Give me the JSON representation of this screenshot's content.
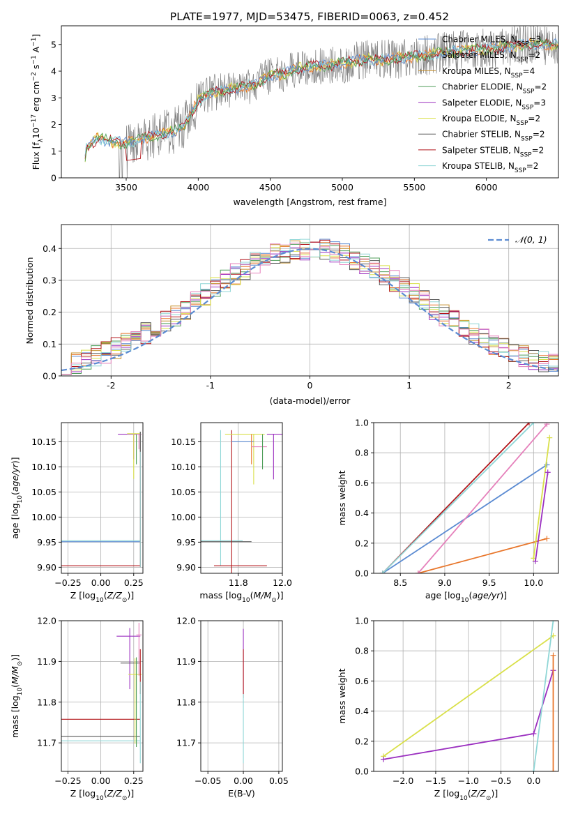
{
  "title": "PLATE=1977, MJD=53475, FIBERID=0063, z=0.452",
  "colors": {
    "chabrier_miles": "#5b8bd2",
    "salpeter_miles": "#e8762b",
    "kroupa_miles": "#c5902e",
    "chabrier_elodie": "#4f9e5a",
    "salpeter_elodie": "#9b30c0",
    "kroupa_elodie": "#d9e04a",
    "chabrier_stelib": "#595959",
    "salpeter_stelib": "#b2151a",
    "kroupa_stelib": "#8fd6d6",
    "pink": "#e580bb",
    "gray": "#808080",
    "grid": "#b0b0b0",
    "gaussian": "#5b8bd2"
  },
  "chart_data": [
    {
      "id": "spectrum",
      "type": "line",
      "title": "PLATE=1977, MJD=53475, FIBERID=0063, z=0.452",
      "xlabel": "wavelength [Angstrom, rest frame]",
      "ylabel": "Flux [fλ10⁻¹⁷ erg cm⁻² s⁻¹ A⁻¹]",
      "xlim": [
        3050,
        6500
      ],
      "ylim": [
        0,
        5.7
      ],
      "xticks": [
        3500,
        4000,
        4500,
        5000,
        5500,
        6000
      ],
      "yticks": [
        0,
        1,
        2,
        3,
        4,
        5
      ],
      "legend_position": "top-right",
      "data_anchor": {
        "x": [
          3200,
          3220,
          3300,
          3400,
          3500,
          3600,
          3700,
          3800,
          3900,
          4000,
          4100,
          4200,
          4300,
          4400,
          4500,
          4600,
          4700,
          4800,
          4900,
          5000,
          5100,
          5200,
          5300,
          5400,
          5500,
          5600,
          5700,
          5800,
          5900,
          6000,
          6100,
          6200,
          6300,
          6500
        ],
        "y": [
          0.0,
          1.1,
          1.5,
          1.35,
          1.3,
          1.45,
          1.6,
          1.7,
          1.9,
          2.9,
          3.2,
          3.3,
          3.4,
          3.5,
          3.85,
          3.9,
          4.1,
          4.2,
          4.2,
          4.3,
          4.4,
          4.45,
          4.4,
          4.5,
          4.55,
          4.6,
          4.7,
          4.75,
          4.8,
          4.85,
          4.9,
          4.95,
          5.0,
          5.0
        ]
      },
      "series": [
        {
          "name": "Chabrier MILES, N$_{SSP}$=3"
        },
        {
          "name": "Salpeter MILES, N$_{SSP}$=2"
        },
        {
          "name": "Kroupa MILES, N$_{SSP}$=4"
        },
        {
          "name": "Chabrier ELODIE, N$_{SSP}$=2"
        },
        {
          "name": "Salpeter ELODIE, N$_{SSP}$=3"
        },
        {
          "name": "Kroupa ELODIE, N$_{SSP}$=2"
        },
        {
          "name": "Chabrier STELIB, N$_{SSP}$=2"
        },
        {
          "name": "Salpeter STELIB, N$_{SSP}$=2"
        },
        {
          "name": "Kroupa STELIB, N$_{SSP}$=2"
        }
      ]
    },
    {
      "id": "residuals",
      "type": "line",
      "xlabel": "(data-model)/error",
      "ylabel": "Normed distribution",
      "xlim": [
        -2.5,
        2.5
      ],
      "ylim": [
        0,
        0.475
      ],
      "xticks": [
        -2,
        -1,
        0,
        1,
        2
      ],
      "yticks": [
        0.0,
        0.1,
        0.2,
        0.3,
        0.4
      ],
      "legend": "𝒩(0, 1)",
      "bin_width": 0.1,
      "bin_start": -2.5
    },
    {
      "id": "age_vs_Z",
      "xlabel": "Z [log10(Z/Z⊙)]",
      "ylabel": "age  [log10(age/yr)]",
      "xlim": [
        -0.3,
        0.32
      ],
      "ylim": [
        9.888,
        10.188
      ],
      "xticks": [
        -0.25,
        0.0,
        0.25
      ],
      "xticklabels": [
        "−0.25",
        "0.00",
        "0.25"
      ],
      "yticks": [
        9.9,
        9.95,
        10.0,
        10.05,
        10.1,
        10.15
      ],
      "yticklabels": [
        "9.90",
        "9.95",
        "10.00",
        "10.05",
        "10.10",
        "10.15"
      ]
    },
    {
      "id": "age_vs_mass",
      "xlabel": "mass [log10(M/M⊙)]",
      "xlim": [
        11.63,
        12.0
      ],
      "ylim": [
        9.888,
        10.188
      ],
      "xticks": [
        11.8,
        12.0
      ],
      "xticklabels": [
        "11.8",
        "12.0"
      ],
      "yticks": [
        9.9,
        9.95,
        10.0,
        10.05,
        10.1,
        10.15
      ],
      "yticklabels": [
        "9.90",
        "9.95",
        "10.00",
        "10.05",
        "10.10",
        "10.15"
      ]
    },
    {
      "id": "massweight_vs_age",
      "type": "line",
      "xlabel": "age  [log10(age/yr)]",
      "ylabel": "mass weight",
      "xlim": [
        8.2,
        10.28
      ],
      "ylim": [
        0,
        1
      ],
      "xticks": [
        8.5,
        9.0,
        9.5,
        10.0
      ],
      "xticklabels": [
        "8.5",
        "9.0",
        "9.5",
        "10.0"
      ],
      "yticks": [
        0.0,
        0.2,
        0.4,
        0.6,
        0.8,
        1.0
      ],
      "yticklabels": [
        "0.0",
        "0.2",
        "0.4",
        "0.6",
        "0.8",
        "1.0"
      ],
      "series": [
        {
          "color": "chabrier_miles",
          "x": [
            8.3,
            10.15
          ],
          "y": [
            0.0,
            0.72
          ]
        },
        {
          "color": "salpeter_miles",
          "x": [
            8.7,
            10.15
          ],
          "y": [
            0.0,
            0.23
          ]
        },
        {
          "color": "salpeter_stelib",
          "x": [
            8.3,
            9.95
          ],
          "y": [
            0.0,
            1.0
          ]
        },
        {
          "color": "kroupa_stelib",
          "x": [
            8.3,
            10.0
          ],
          "y": [
            0.0,
            1.0
          ]
        },
        {
          "color": "pink",
          "x": [
            8.7,
            10.15
          ],
          "y": [
            0.0,
            0.99
          ]
        },
        {
          "color": "kroupa_elodie",
          "x": [
            10.0,
            10.18
          ],
          "y": [
            0.1,
            0.9
          ]
        },
        {
          "color": "salpeter_elodie",
          "x": [
            10.02,
            10.16
          ],
          "y": [
            0.08,
            0.67
          ]
        }
      ]
    },
    {
      "id": "mass_vs_Z",
      "xlabel": "Z [log10(Z/Z⊙)]",
      "ylabel": "mass [log10(M/M⊙)]",
      "xlim": [
        -0.3,
        0.32
      ],
      "ylim": [
        11.63,
        12.0
      ],
      "xticks": [
        -0.25,
        0.0,
        0.25
      ],
      "xticklabels": [
        "−0.25",
        "0.00",
        "0.25"
      ],
      "yticks": [
        11.7,
        11.8,
        11.9,
        12.0
      ],
      "yticklabels": [
        "11.7",
        "11.8",
        "11.9",
        "12.0"
      ]
    },
    {
      "id": "mass_vs_ebv",
      "xlabel": "E(B-V)",
      "xlim": [
        -0.06,
        0.055
      ],
      "ylim": [
        11.63,
        12.0
      ],
      "xticks": [
        -0.05,
        0.0,
        0.05
      ],
      "xticklabels": [
        "−0.05",
        "0.00",
        "0.05"
      ],
      "yticks": [
        11.7,
        11.8,
        11.9,
        12.0
      ],
      "yticklabels": [
        "11.7",
        "11.8",
        "11.9",
        "12.0"
      ]
    },
    {
      "id": "massweight_vs_Z",
      "type": "line",
      "xlabel": "Z [log10(Z/Z⊙)]",
      "ylabel": "mass weight",
      "xlim": [
        -2.45,
        0.38
      ],
      "ylim": [
        0,
        1
      ],
      "xticks": [
        -2.0,
        -1.5,
        -1.0,
        -0.5,
        0.0
      ],
      "xticklabels": [
        "−2.0",
        "−1.5",
        "−1.0",
        "−0.5",
        "0.0"
      ],
      "yticks": [
        0.0,
        0.2,
        0.4,
        0.6,
        0.8,
        1.0
      ],
      "yticklabels": [
        "0.0",
        "0.2",
        "0.4",
        "0.6",
        "0.8",
        "1.0"
      ],
      "series": [
        {
          "color": "kroupa_elodie",
          "x": [
            -2.3,
            0.3
          ],
          "y": [
            0.1,
            0.9
          ]
        },
        {
          "color": "salpeter_elodie",
          "x": [
            -2.3,
            0.0,
            0.3
          ],
          "y": [
            0.08,
            0.25,
            0.67
          ]
        },
        {
          "color": "kroupa_stelib",
          "x": [
            0.0,
            0.3
          ],
          "y": [
            0.0,
            1.0
          ]
        },
        {
          "color": "salpeter_miles",
          "x": [
            0.3,
            0.3
          ],
          "y": [
            0.0,
            0.77
          ]
        }
      ]
    }
  ]
}
